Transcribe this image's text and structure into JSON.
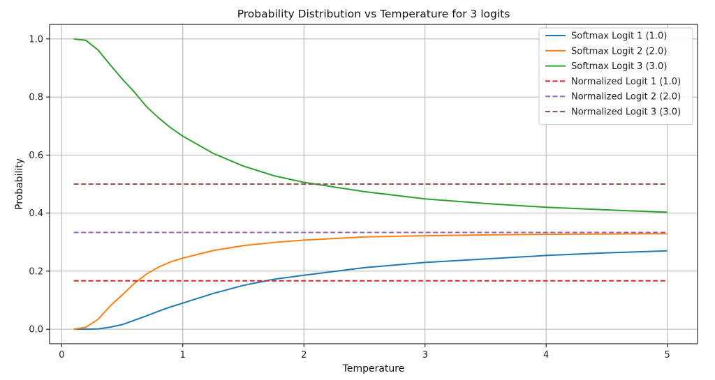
{
  "chart_data": {
    "type": "line",
    "title": "Probability Distribution vs Temperature for 3 logits",
    "xlabel": "Temperature",
    "ylabel": "Probability",
    "xlim": [
      -0.1,
      5.25
    ],
    "ylim": [
      -0.05,
      1.05
    ],
    "x_ticks": [
      0,
      1,
      2,
      3,
      4,
      5
    ],
    "x_tick_labels": [
      "0",
      "1",
      "2",
      "3",
      "4",
      "5"
    ],
    "y_ticks": [
      0.0,
      0.2,
      0.4,
      0.6,
      0.8,
      1.0
    ],
    "y_tick_labels": [
      "0.0",
      "0.2",
      "0.4",
      "0.6",
      "0.8",
      "1.0"
    ],
    "grid": true,
    "legend_position": "top-right",
    "x": [
      0.1,
      0.2,
      0.3,
      0.4,
      0.5,
      0.6,
      0.7,
      0.8,
      0.9,
      1.0,
      1.25,
      1.5,
      1.75,
      2.0,
      2.5,
      3.0,
      3.5,
      4.0,
      4.5,
      5.0
    ],
    "series": [
      {
        "name": "Softmax Logit 1 (1.0)",
        "color": "#1f77b4",
        "style": "solid",
        "values": [
          0.0,
          0.0,
          0.001,
          0.007,
          0.016,
          0.031,
          0.046,
          0.062,
          0.077,
          0.09,
          0.123,
          0.151,
          0.172,
          0.186,
          0.212,
          0.23,
          0.242,
          0.254,
          0.263,
          0.27
        ]
      },
      {
        "name": "Softmax Logit 2 (2.0)",
        "color": "#ff7f0e",
        "style": "solid",
        "values": [
          0.0,
          0.007,
          0.034,
          0.08,
          0.118,
          0.158,
          0.19,
          0.214,
          0.232,
          0.245,
          0.271,
          0.288,
          0.299,
          0.307,
          0.318,
          0.322,
          0.325,
          0.327,
          0.328,
          0.329
        ]
      },
      {
        "name": "Softmax Logit 3 (3.0)",
        "color": "#2ca02c",
        "style": "solid",
        "values": [
          1.0,
          0.995,
          0.962,
          0.911,
          0.862,
          0.817,
          0.767,
          0.728,
          0.694,
          0.665,
          0.606,
          0.562,
          0.529,
          0.506,
          0.474,
          0.449,
          0.433,
          0.42,
          0.411,
          0.403
        ]
      },
      {
        "name": "Normalized Logit 1 (1.0)",
        "color": "#d62728",
        "style": "dashed",
        "values": [
          0.1667,
          0.1667,
          0.1667,
          0.1667,
          0.1667,
          0.1667,
          0.1667,
          0.1667,
          0.1667,
          0.1667,
          0.1667,
          0.1667,
          0.1667,
          0.1667,
          0.1667,
          0.1667,
          0.1667,
          0.1667,
          0.1667,
          0.1667
        ]
      },
      {
        "name": "Normalized Logit 2 (2.0)",
        "color": "#9467bd",
        "style": "dashed",
        "values": [
          0.3333,
          0.3333,
          0.3333,
          0.3333,
          0.3333,
          0.3333,
          0.3333,
          0.3333,
          0.3333,
          0.3333,
          0.3333,
          0.3333,
          0.3333,
          0.3333,
          0.3333,
          0.3333,
          0.3333,
          0.3333,
          0.3333,
          0.3333
        ]
      },
      {
        "name": "Normalized Logit 3 (3.0)",
        "color": "#8c564b",
        "style": "dashed",
        "values": [
          0.5,
          0.5,
          0.5,
          0.5,
          0.5,
          0.5,
          0.5,
          0.5,
          0.5,
          0.5,
          0.5,
          0.5,
          0.5,
          0.5,
          0.5,
          0.5,
          0.5,
          0.5,
          0.5,
          0.5
        ]
      }
    ]
  }
}
